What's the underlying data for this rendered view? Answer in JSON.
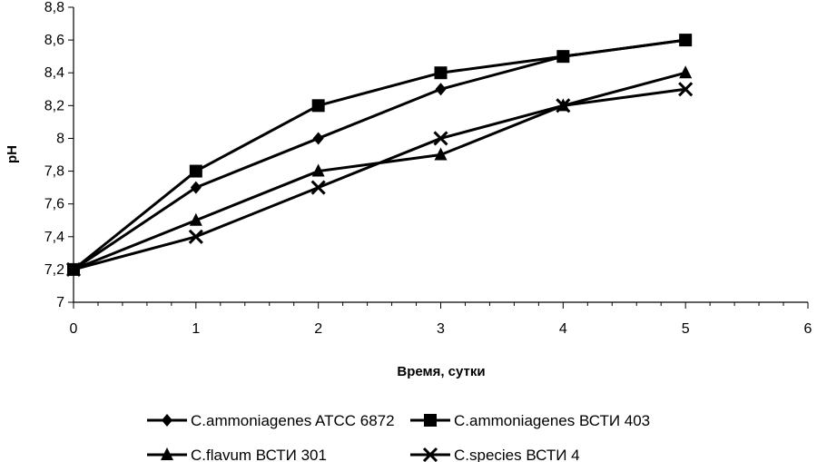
{
  "chart_data": {
    "type": "line",
    "title": "",
    "xlabel": "Время, сутки",
    "ylabel": "pH",
    "xlim": [
      0,
      6
    ],
    "ylim": [
      7,
      8.8
    ],
    "x_ticks": [
      "0",
      "1",
      "2",
      "3",
      "4",
      "5",
      "6"
    ],
    "y_ticks": [
      "7",
      "7,2",
      "7,4",
      "7,6",
      "7,8",
      "8",
      "8,2",
      "8,4",
      "8,6",
      "8,8"
    ],
    "grid": false,
    "legend_position": "bottom",
    "x": [
      0,
      1,
      2,
      3,
      4,
      5
    ],
    "series": [
      {
        "name": "C.ammoniagenes ATCC 6872",
        "marker": "diamond",
        "values": [
          7.2,
          7.7,
          8.0,
          8.3,
          8.5,
          8.6
        ]
      },
      {
        "name": "C.ammoniagenes ВСТИ 403",
        "marker": "square",
        "values": [
          7.2,
          7.8,
          8.2,
          8.4,
          8.5,
          8.6
        ]
      },
      {
        "name": "C.flavum ВСТИ 301",
        "marker": "triangle",
        "values": [
          7.2,
          7.5,
          7.8,
          7.9,
          8.2,
          8.4
        ]
      },
      {
        "name": "C.species ВСТИ 4",
        "marker": "x",
        "values": [
          7.2,
          7.4,
          7.7,
          8.0,
          8.2,
          8.3
        ]
      }
    ]
  }
}
